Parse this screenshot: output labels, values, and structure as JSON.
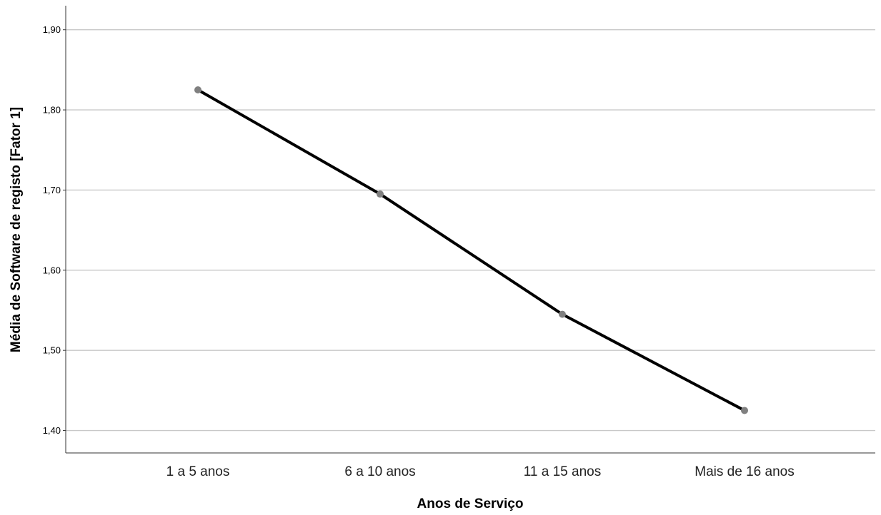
{
  "chart_data": {
    "type": "line",
    "title": "",
    "xlabel": "Anos de Serviço",
    "ylabel": "Média de Software de registo [Fator 1]",
    "categories": [
      "1 a 5 anos",
      "6 a 10 anos",
      "11 a 15 anos",
      "Mais de 16 anos"
    ],
    "values": [
      1.825,
      1.695,
      1.545,
      1.425
    ],
    "ylim": [
      1.372,
      1.93
    ],
    "yticks": [
      1.9,
      1.8,
      1.7,
      1.6,
      1.5,
      1.4
    ],
    "ytick_labels": [
      "1,90",
      "1,80",
      "1,70",
      "1,60",
      "1,50",
      "1,40"
    ],
    "grid": true,
    "line_color": "#000000",
    "marker_color": "#808080",
    "grid_color": "#c8c8c8"
  }
}
